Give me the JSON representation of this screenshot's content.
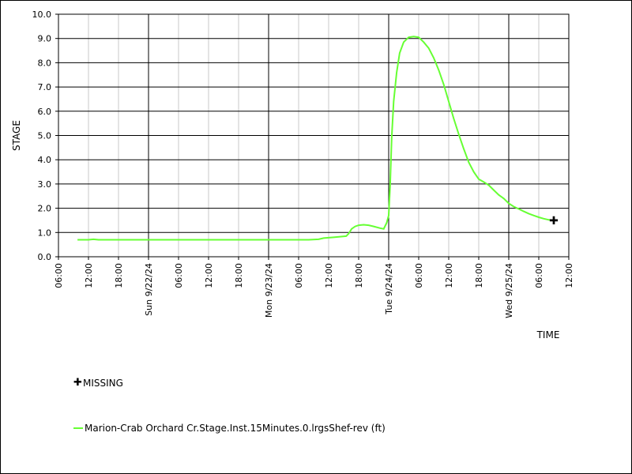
{
  "chart_data": {
    "type": "line",
    "xlabel": "TIME",
    "ylabel": "STAGE",
    "ylim": [
      0,
      10
    ],
    "y_ticks": [
      "0.0",
      "1.0",
      "2.0",
      "3.0",
      "4.0",
      "5.0",
      "6.0",
      "7.0",
      "8.0",
      "9.0",
      "10.0"
    ],
    "xlim_hours": [
      0,
      102
    ],
    "x_ticks": [
      {
        "hour": 0,
        "label": "06:00",
        "major": false
      },
      {
        "hour": 6,
        "label": "12:00",
        "major": false
      },
      {
        "hour": 12,
        "label": "18:00",
        "major": false
      },
      {
        "hour": 18,
        "label": "Sun 9/22/24",
        "major": true
      },
      {
        "hour": 24,
        "label": "06:00",
        "major": false
      },
      {
        "hour": 30,
        "label": "12:00",
        "major": false
      },
      {
        "hour": 36,
        "label": "18:00",
        "major": false
      },
      {
        "hour": 42,
        "label": "Mon 9/23/24",
        "major": true
      },
      {
        "hour": 48,
        "label": "06:00",
        "major": false
      },
      {
        "hour": 54,
        "label": "12:00",
        "major": false
      },
      {
        "hour": 60,
        "label": "18:00",
        "major": false
      },
      {
        "hour": 66,
        "label": "Tue 9/24/24",
        "major": true
      },
      {
        "hour": 72,
        "label": "06:00",
        "major": false
      },
      {
        "hour": 78,
        "label": "12:00",
        "major": false
      },
      {
        "hour": 84,
        "label": "18:00",
        "major": false
      },
      {
        "hour": 90,
        "label": "Wed 9/25/24",
        "major": true
      },
      {
        "hour": 96,
        "label": "06:00",
        "major": false
      },
      {
        "hour": 102,
        "label": "12:00",
        "major": false
      }
    ],
    "series": [
      {
        "name": "Marion-Crab Orchard Cr.Stage.Inst.15Minutes.0.lrgsShef-rev (ft)",
        "color": "#66ff33",
        "points": [
          [
            3.8,
            0.7
          ],
          [
            6.0,
            0.7
          ],
          [
            7.0,
            0.72
          ],
          [
            8.0,
            0.7
          ],
          [
            20,
            0.7
          ],
          [
            30,
            0.7
          ],
          [
            40,
            0.7
          ],
          [
            50,
            0.7
          ],
          [
            52.0,
            0.72
          ],
          [
            53.0,
            0.77
          ],
          [
            55.0,
            0.8
          ],
          [
            56.5,
            0.83
          ],
          [
            57.5,
            0.85
          ],
          [
            58.0,
            0.95
          ],
          [
            58.6,
            1.15
          ],
          [
            59.3,
            1.25
          ],
          [
            60.0,
            1.3
          ],
          [
            61.0,
            1.32
          ],
          [
            62.0,
            1.3
          ],
          [
            63.0,
            1.25
          ],
          [
            64.3,
            1.18
          ],
          [
            65.0,
            1.15
          ],
          [
            65.6,
            1.4
          ],
          [
            66.0,
            1.7
          ],
          [
            66.3,
            3.0
          ],
          [
            66.6,
            4.9
          ],
          [
            67.0,
            6.4
          ],
          [
            67.6,
            7.6
          ],
          [
            68.2,
            8.4
          ],
          [
            69.0,
            8.85
          ],
          [
            70.0,
            9.05
          ],
          [
            71.0,
            9.08
          ],
          [
            72.0,
            9.05
          ],
          [
            73.0,
            8.85
          ],
          [
            74.0,
            8.6
          ],
          [
            75.0,
            8.2
          ],
          [
            76.0,
            7.7
          ],
          [
            77.0,
            7.1
          ],
          [
            78.0,
            6.4
          ],
          [
            79.0,
            5.7
          ],
          [
            80.0,
            5.05
          ],
          [
            81.0,
            4.45
          ],
          [
            82.0,
            3.9
          ],
          [
            83.0,
            3.5
          ],
          [
            84.0,
            3.2
          ],
          [
            85.0,
            3.08
          ],
          [
            86.0,
            2.95
          ],
          [
            87.0,
            2.75
          ],
          [
            88.0,
            2.55
          ],
          [
            89.0,
            2.4
          ],
          [
            90.0,
            2.2
          ],
          [
            91.0,
            2.07
          ],
          [
            92.0,
            1.97
          ],
          [
            93.0,
            1.87
          ],
          [
            94.0,
            1.78
          ],
          [
            95.0,
            1.7
          ],
          [
            96.0,
            1.63
          ],
          [
            97.0,
            1.57
          ],
          [
            98.0,
            1.52
          ],
          [
            99.0,
            1.5
          ]
        ]
      }
    ],
    "missing": {
      "label": "MISSING",
      "points": [
        [
          99.0,
          1.5
        ]
      ]
    },
    "grid": true
  }
}
